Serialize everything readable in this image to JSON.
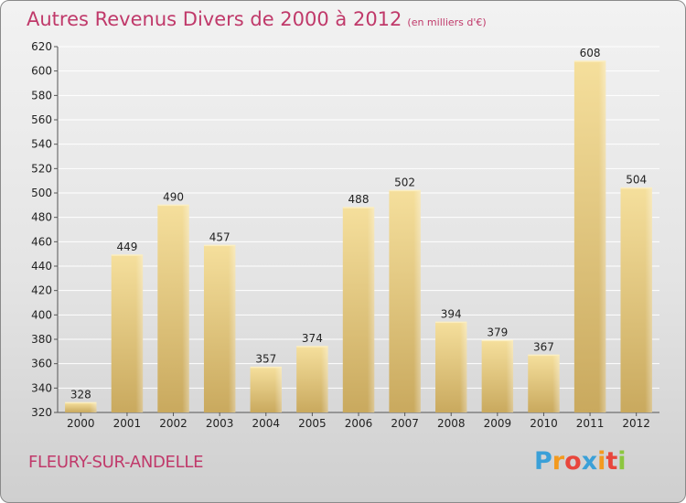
{
  "header": {
    "title": "Autres Revenus Divers de 2000 à 2012",
    "unit": "(en milliers d'€)"
  },
  "footer": {
    "city": "FLEURY-SUR-ANDELLE",
    "logo": [
      "P",
      "r",
      "o",
      "x",
      "i",
      "t",
      "i"
    ]
  },
  "colors": {
    "bar": "#d9bd6f",
    "bar_light": "#f3dc98",
    "grid": "#ffffff",
    "title": "#c0396a"
  },
  "chart_data": {
    "type": "bar",
    "title": "Autres Revenus Divers de 2000 à 2012",
    "xlabel": "",
    "ylabel": "",
    "categories": [
      "2000",
      "2001",
      "2002",
      "2003",
      "2004",
      "2005",
      "2006",
      "2007",
      "2008",
      "2009",
      "2010",
      "2011",
      "2012"
    ],
    "values": [
      328,
      449,
      490,
      457,
      357,
      374,
      488,
      502,
      394,
      379,
      367,
      608,
      504
    ],
    "ylim": [
      320,
      620
    ],
    "yticks": [
      320,
      340,
      360,
      380,
      400,
      420,
      440,
      460,
      480,
      500,
      520,
      540,
      560,
      580,
      600,
      620
    ],
    "grid": true
  }
}
